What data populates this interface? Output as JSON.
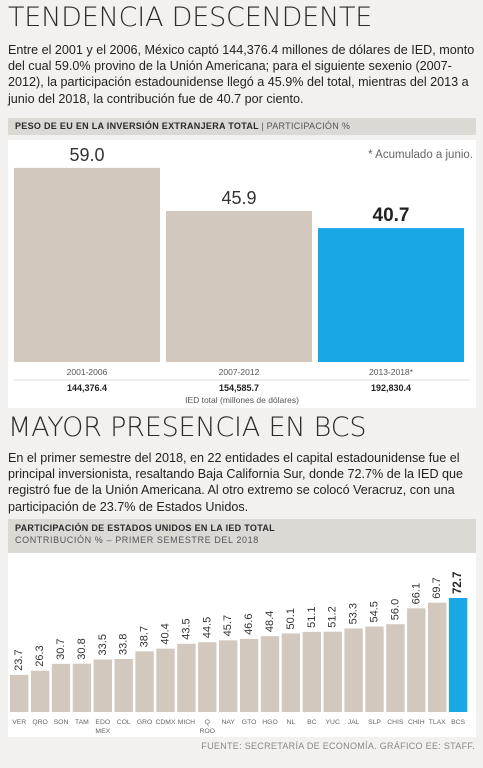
{
  "section1": {
    "title": "TENDENCIA DESCENDENTE",
    "paragraph": "Entre el 2001 y el 2006, México captó 144,376.4 millones de dólares de IED, monto del cual 59.0% provino de la Unión Americana; para el siguiente sexenio (2007-2012), la participación estadounidense llegó a 45.9% del total, mientras del 2013 a junio del 2018, la contribución fue de 40.7 por ciento.",
    "chart_header_bold": "PESO DE EU EN LA INVERSIÓN EXTRANJERA TOTAL",
    "chart_header_sep": "|",
    "chart_header_light": "PARTICIPACIÓN %",
    "note": "* Acumulado a junio.",
    "totals_caption": "IED total (millones de dólares)"
  },
  "section2": {
    "title": "MAYOR PRESENCIA EN BCS",
    "paragraph": "En el primer semestre del 2018, en 22 entidades el capital estadounidense fue el principal inversionista, resaltando Baja California Sur, donde 72.7% de la IED que registró fue de la Unión Americana. Al otro extremo se colocó Veracruz, con una participación de 23.7% de Estados Unidos.",
    "chart_header_bold": "PARTICIPACIÓN DE ESTADOS UNIDOS EN LA IED TOTAL",
    "chart_header_light": "CONTRIBUCIÓN % – PRIMER SEMESTRE DEL 2018"
  },
  "footer": "FUENTE: SECRETARÍA DE ECONOMÍA. GRÁFICO EE: STAFF.",
  "colors": {
    "bar": "#d2c8bd",
    "highlight": "#1aa7e6",
    "header_bg": "#dcd8d3"
  },
  "chart_data": [
    {
      "type": "bar",
      "categories": [
        "2001-2006",
        "2007-2012",
        "2013-2018*"
      ],
      "values": [
        59.0,
        45.9,
        40.7
      ],
      "value_labels": [
        "59.0",
        "45.9",
        "40.7"
      ],
      "totals": [
        "144,376.4",
        "154,585.7",
        "192,830.4"
      ],
      "highlight_index": 2,
      "ylim": [
        0,
        62
      ]
    },
    {
      "type": "bar",
      "categories": [
        "VER",
        "QRO",
        "SON",
        "TAM",
        "EDO MEX",
        "COL",
        "GRO",
        "CDMX",
        "MICH",
        "Q ROO",
        "NAY",
        "GTO",
        "HGO",
        "NL",
        "BC",
        "YUC",
        "JAL",
        "SLP",
        "CHIS",
        "CHIH",
        "TLAX",
        "BCS"
      ],
      "values": [
        23.7,
        26.3,
        30.7,
        30.8,
        33.5,
        33.8,
        38.7,
        40.4,
        43.5,
        44.5,
        45.7,
        46.6,
        48.4,
        50.1,
        51.1,
        51.2,
        53.3,
        54.5,
        56.0,
        66.1,
        69.7,
        72.7
      ],
      "value_labels": [
        "23.7",
        "26.3",
        "30.7",
        "30.8",
        "33.5",
        "33.8",
        "38.7",
        "40.4",
        "43.5",
        "44.5",
        "45.7",
        "46.6",
        "48.4",
        "50.1",
        "51.1",
        "51.2",
        "53.3",
        "54.5",
        "56.0",
        "66.1",
        "69.7",
        "72.7"
      ],
      "highlight_index": 21,
      "ylim": [
        0,
        80
      ]
    }
  ]
}
